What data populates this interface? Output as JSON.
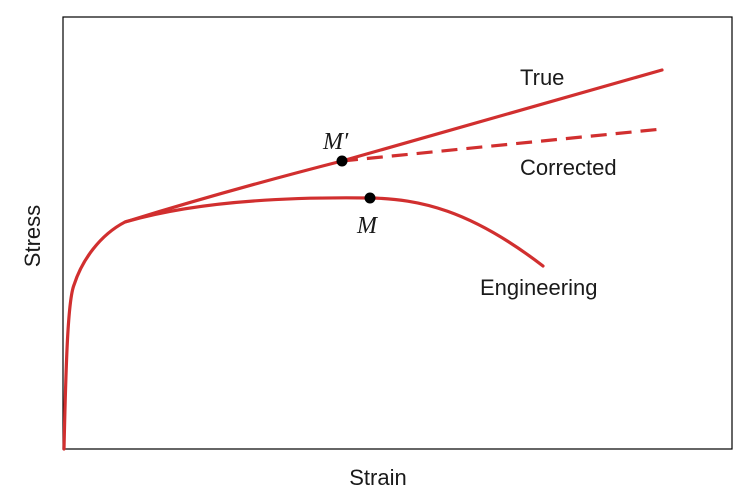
{
  "diagram": {
    "x_axis_label": "Strain",
    "y_axis_label": "Stress",
    "curves": {
      "true": {
        "label": "True",
        "color": "#d12f2f",
        "style": "solid"
      },
      "corrected": {
        "label": "Corrected",
        "color": "#d12f2f",
        "style": "dashed"
      },
      "engineering": {
        "label": "Engineering",
        "color": "#d12f2f",
        "style": "solid"
      }
    },
    "points": {
      "m_prime": {
        "label": "M′",
        "color": "#000000"
      },
      "m": {
        "label": "M",
        "color": "#000000"
      }
    },
    "frame_color": "#000000"
  }
}
